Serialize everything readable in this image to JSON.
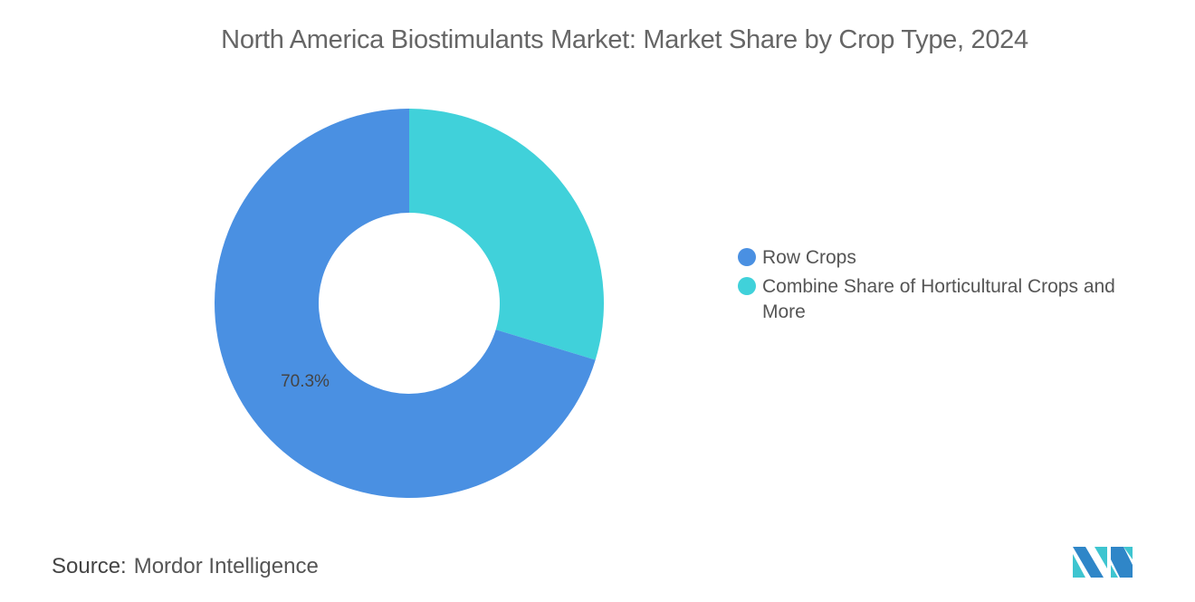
{
  "chart_data": {
    "type": "pie",
    "donut": true,
    "title": "North America Biostimulants Market: Market Share by Crop Type, 2024",
    "categories": [
      "Row Crops",
      "Combine Share of Horticultural Crops and More"
    ],
    "values": [
      70.3,
      29.7
    ],
    "unit": "%",
    "colors": [
      "#4a90e2",
      "#40d1da"
    ],
    "data_labels": [
      "70.3%",
      ""
    ],
    "legend_position": "right"
  },
  "source": {
    "label": "Source:",
    "value": "Mordor Intelligence"
  },
  "logo": {
    "name": "mordor-intelligence-logo",
    "colors": [
      "#2f86c8",
      "#3ec5d0"
    ]
  }
}
